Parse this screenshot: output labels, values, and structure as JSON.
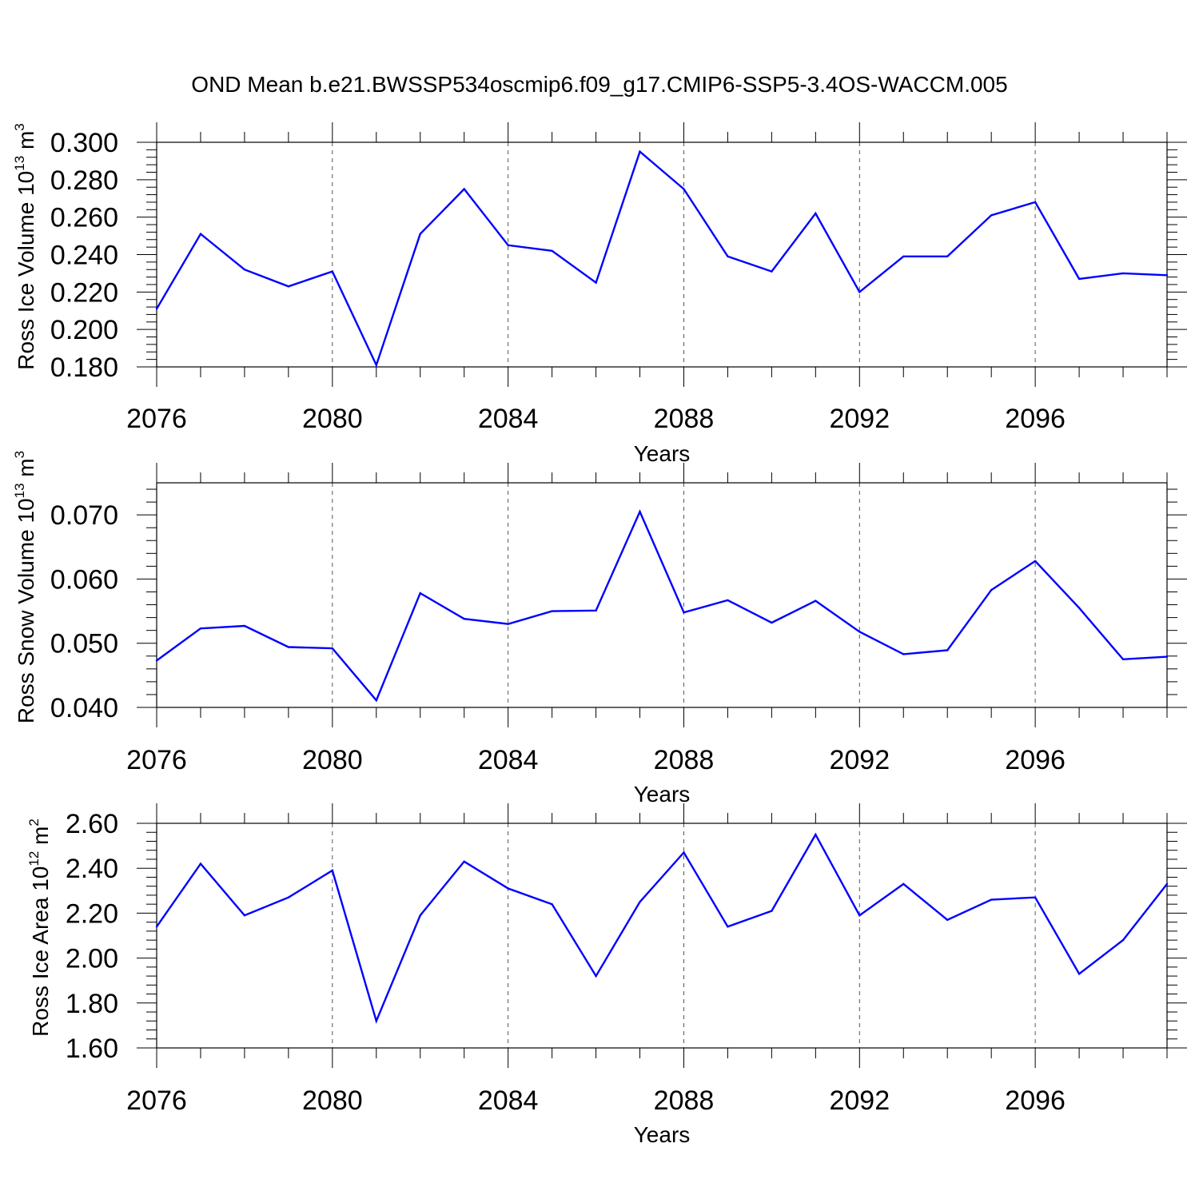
{
  "title": "OND Mean b.e21.BWSSP534oscmip6.f09_g17.CMIP6-SSP5-3.4OS-WACCM.005",
  "chart_data": [
    {
      "type": "line",
      "ylabel": "Ross Ice Volume 10",
      "ylabel_exp": "13",
      "ylabel_unit": " m",
      "ylabel_unit_exp": "3",
      "xlabel": "Years",
      "ylim": [
        0.18,
        0.3
      ],
      "yticks": [
        0.18,
        0.2,
        0.22,
        0.24,
        0.26,
        0.28,
        0.3
      ],
      "ytick_labels": [
        "0.180",
        "0.200",
        "0.220",
        "0.240",
        "0.260",
        "0.280",
        "0.300"
      ],
      "x": [
        2076,
        2077,
        2078,
        2079,
        2080,
        2081,
        2082,
        2083,
        2084,
        2085,
        2086,
        2087,
        2088,
        2089,
        2090,
        2091,
        2092,
        2093,
        2094,
        2095,
        2096,
        2097,
        2098,
        2099
      ],
      "values": [
        0.211,
        0.251,
        0.232,
        0.223,
        0.231,
        0.181,
        0.251,
        0.275,
        0.245,
        0.242,
        0.225,
        0.295,
        0.275,
        0.239,
        0.231,
        0.262,
        0.22,
        0.239,
        0.239,
        0.261,
        0.268,
        0.227,
        0.23,
        0.229
      ],
      "series_color": "#0000ff"
    },
    {
      "type": "line",
      "ylabel": "Ross Snow Volume 10",
      "ylabel_exp": "13",
      "ylabel_unit": " m",
      "ylabel_unit_exp": "3",
      "xlabel": "Years",
      "ylim": [
        0.04,
        0.075
      ],
      "yticks": [
        0.04,
        0.05,
        0.06,
        0.07
      ],
      "ytick_labels": [
        "0.040",
        "0.050",
        "0.060",
        "0.070"
      ],
      "x": [
        2076,
        2077,
        2078,
        2079,
        2080,
        2081,
        2082,
        2083,
        2084,
        2085,
        2086,
        2087,
        2088,
        2089,
        2090,
        2091,
        2092,
        2093,
        2094,
        2095,
        2096,
        2097,
        2098,
        2099
      ],
      "values": [
        0.0473,
        0.0523,
        0.0527,
        0.0494,
        0.0492,
        0.0411,
        0.0578,
        0.0538,
        0.053,
        0.055,
        0.0551,
        0.0705,
        0.0548,
        0.0567,
        0.0532,
        0.0566,
        0.0518,
        0.0483,
        0.0489,
        0.0583,
        0.0628,
        0.0555,
        0.0475,
        0.0479
      ],
      "series_color": "#0000ff"
    },
    {
      "type": "line",
      "ylabel": "Ross Ice Area 10",
      "ylabel_exp": "12",
      "ylabel_unit": " m",
      "ylabel_unit_exp": "2",
      "xlabel": "Years",
      "ylim": [
        1.6,
        2.6
      ],
      "yticks": [
        1.6,
        1.8,
        2.0,
        2.2,
        2.4,
        2.6
      ],
      "ytick_labels": [
        "1.60",
        "1.80",
        "2.00",
        "2.20",
        "2.40",
        "2.60"
      ],
      "x": [
        2076,
        2077,
        2078,
        2079,
        2080,
        2081,
        2082,
        2083,
        2084,
        2085,
        2086,
        2087,
        2088,
        2089,
        2090,
        2091,
        2092,
        2093,
        2094,
        2095,
        2096,
        2097,
        2098,
        2099
      ],
      "values": [
        2.14,
        2.42,
        2.19,
        2.27,
        2.39,
        1.72,
        2.19,
        2.43,
        2.31,
        2.24,
        1.92,
        2.25,
        2.47,
        2.14,
        2.21,
        2.55,
        2.19,
        2.33,
        2.17,
        2.26,
        2.27,
        1.93,
        2.08,
        2.33
      ],
      "series_color": "#0000ff"
    }
  ],
  "xaxis": {
    "min": 2076,
    "max": 2099,
    "major_ticks": [
      2076,
      2080,
      2084,
      2088,
      2092,
      2096
    ],
    "major_tick_labels": [
      "2076",
      "2080",
      "2084",
      "2088",
      "2092",
      "2096"
    ]
  }
}
